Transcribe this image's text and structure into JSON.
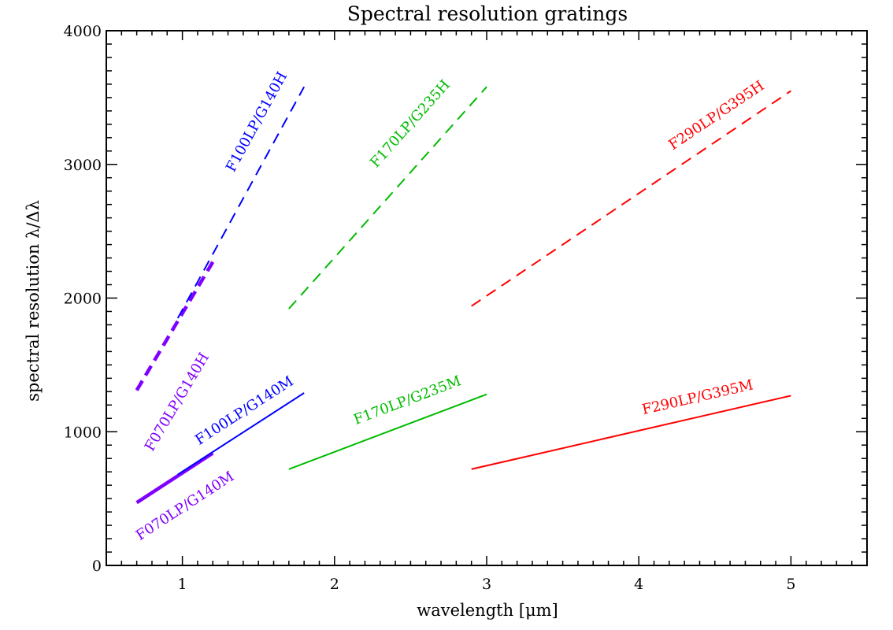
{
  "chart_data": {
    "type": "line",
    "title": "Spectral resolution gratings",
    "xlabel": "wavelength [μm]",
    "ylabel": "spectral resolution λ/Δλ",
    "xlim": [
      0.5,
      5.5
    ],
    "ylim": [
      0,
      4000
    ],
    "x_ticks": [
      {
        "value": 1,
        "label": "1"
      },
      {
        "value": 2,
        "label": "2"
      },
      {
        "value": 3,
        "label": "3"
      },
      {
        "value": 4,
        "label": "4"
      },
      {
        "value": 5,
        "label": "5"
      }
    ],
    "y_ticks": [
      {
        "value": 0,
        "label": "0"
      },
      {
        "value": 1000,
        "label": "1000"
      },
      {
        "value": 2000,
        "label": "2000"
      },
      {
        "value": 3000,
        "label": "3000"
      },
      {
        "value": 4000,
        "label": "4000"
      }
    ],
    "grid": false,
    "legend": "none",
    "series": [
      {
        "name": "F070LP/G140H",
        "color": "#8000ff",
        "dashed": true,
        "thick": true,
        "x": [
          0.7,
          1.2
        ],
        "y": [
          1310,
          2270
        ]
      },
      {
        "name": "F100LP/G140H",
        "color": "#0000ff",
        "dashed": true,
        "thick": false,
        "x": [
          0.97,
          1.8
        ],
        "y": [
          1850,
          3580
        ]
      },
      {
        "name": "F170LP/G235H",
        "color": "#00bb00",
        "dashed": true,
        "thick": false,
        "x": [
          1.7,
          3.0
        ],
        "y": [
          1920,
          3580
        ]
      },
      {
        "name": "F290LP/G395H",
        "color": "#ff0000",
        "dashed": true,
        "thick": false,
        "x": [
          2.9,
          5.0
        ],
        "y": [
          1940,
          3550
        ]
      },
      {
        "name": "F070LP/G140M",
        "color": "#8000ff",
        "dashed": false,
        "thick": true,
        "x": [
          0.7,
          1.2
        ],
        "y": [
          470,
          840
        ]
      },
      {
        "name": "F100LP/G140M",
        "color": "#0000ff",
        "dashed": false,
        "thick": false,
        "x": [
          0.97,
          1.8
        ],
        "y": [
          680,
          1290
        ]
      },
      {
        "name": "F170LP/G235M",
        "color": "#00bb00",
        "dashed": false,
        "thick": false,
        "x": [
          1.7,
          3.0
        ],
        "y": [
          720,
          1280
        ]
      },
      {
        "name": "F290LP/G395M",
        "color": "#ff0000",
        "dashed": false,
        "thick": false,
        "x": [
          2.9,
          5.0
        ],
        "y": [
          720,
          1270
        ]
      }
    ]
  }
}
